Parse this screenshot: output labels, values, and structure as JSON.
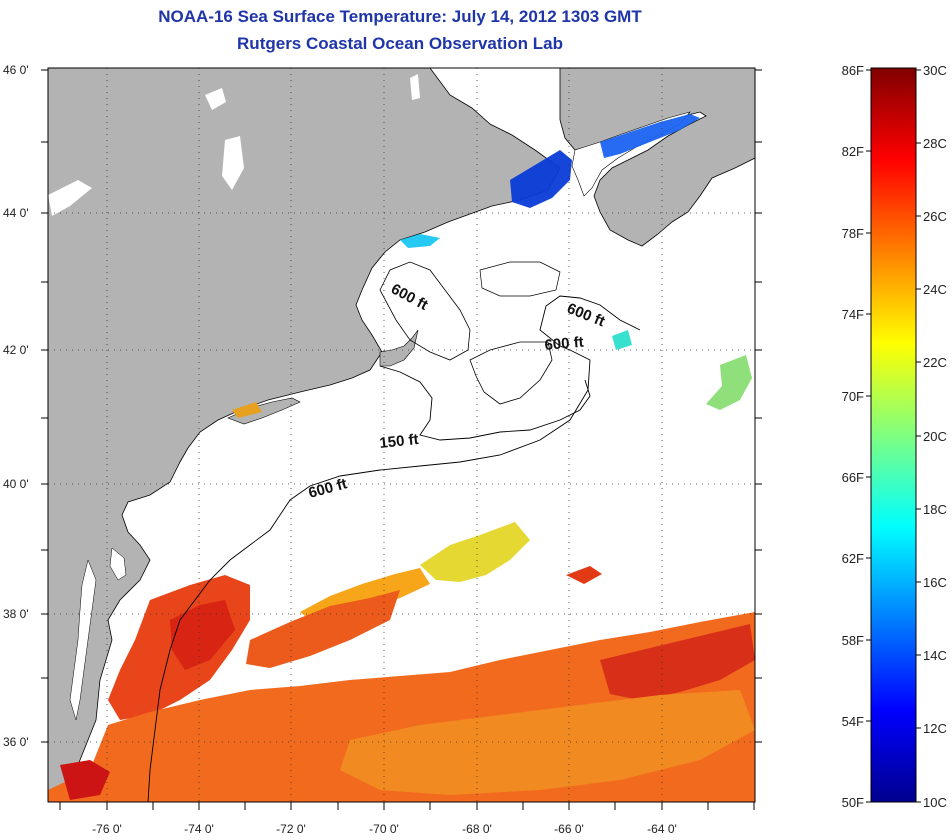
{
  "header": {
    "title": "NOAA-16 Sea Surface Temperature:  July 14, 2012 1303 GMT",
    "subtitle": "Rutgers Coastal Ocean Observation Lab"
  },
  "map": {
    "lat_labels": [
      "46 0'",
      "44 0'",
      "42 0'",
      "40 0'",
      "38 0'",
      "36 0'"
    ],
    "lon_labels": [
      "-76 0'",
      "-74 0'",
      "-72 0'",
      "-70 0'",
      "-68 0'",
      "-66 0'",
      "-64 0'"
    ],
    "isobath_labels": [
      "600 ft",
      "600 ft",
      "600 ft",
      "150 ft",
      "600 ft"
    ],
    "land_color": "#b3b3b3",
    "ocean_color": "#ffffff"
  },
  "colorbar": {
    "fahrenheit_labels": [
      "86F",
      "82F",
      "78F",
      "74F",
      "70F",
      "66F",
      "62F",
      "58F",
      "54F",
      "50F"
    ],
    "celsius_labels": [
      "30C",
      "28C",
      "26C",
      "24C",
      "22C",
      "20C",
      "18C",
      "16C",
      "14C",
      "12C",
      "10C"
    ],
    "colormap": "jet"
  }
}
